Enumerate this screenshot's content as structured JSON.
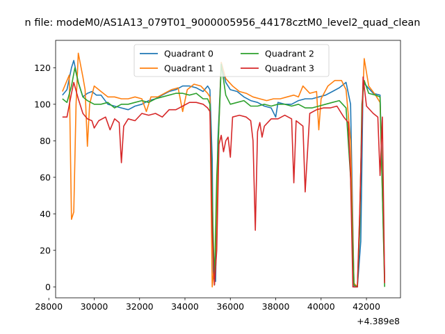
{
  "chart_data": {
    "type": "line",
    "title": "n file: modeM0/AS1A13_079T01_9000005956_44178cztM0_level2_quad_clean",
    "xlabel": "",
    "ylabel": "",
    "x_offset_label": "+4.389e8",
    "xlim": [
      28300,
      43500
    ],
    "ylim": [
      -6,
      135
    ],
    "xticks": [
      28000,
      30000,
      32000,
      34000,
      36000,
      38000,
      40000,
      42000
    ],
    "yticks": [
      0,
      20,
      40,
      60,
      80,
      100,
      120
    ],
    "legend": {
      "placement": "upper center",
      "columns": 2
    },
    "colors": {
      "Quadrant 0": "#1f77b4",
      "Quadrant 1": "#ff7f0e",
      "Quadrant 2": "#2ca02c",
      "Quadrant 3": "#d62728"
    },
    "series": [
      {
        "name": "Quadrant 0",
        "points": [
          [
            28600,
            105
          ],
          [
            28800,
            108
          ],
          [
            29000,
            120
          ],
          [
            29100,
            124
          ],
          [
            29300,
            112
          ],
          [
            29500,
            104
          ],
          [
            29700,
            106
          ],
          [
            29900,
            107
          ],
          [
            30100,
            105
          ],
          [
            30300,
            105
          ],
          [
            30600,
            100
          ],
          [
            30900,
            99
          ],
          [
            31200,
            98
          ],
          [
            31500,
            97
          ],
          [
            31800,
            99
          ],
          [
            32100,
            100
          ],
          [
            32400,
            102
          ],
          [
            32700,
            103
          ],
          [
            33000,
            105
          ],
          [
            33300,
            107
          ],
          [
            33600,
            108
          ],
          [
            33900,
            110
          ],
          [
            34200,
            110
          ],
          [
            34500,
            109
          ],
          [
            34800,
            107
          ],
          [
            35000,
            110
          ],
          [
            35100,
            108
          ],
          [
            35200,
            70
          ],
          [
            35250,
            5
          ],
          [
            35350,
            3
          ],
          [
            35450,
            80
          ],
          [
            35600,
            122
          ],
          [
            35800,
            112
          ],
          [
            36000,
            108
          ],
          [
            36300,
            107
          ],
          [
            36600,
            104
          ],
          [
            36900,
            102
          ],
          [
            37200,
            101
          ],
          [
            37500,
            99
          ],
          [
            37800,
            98
          ],
          [
            38000,
            93
          ],
          [
            38100,
            101
          ],
          [
            38400,
            100
          ],
          [
            38700,
            100
          ],
          [
            39000,
            102
          ],
          [
            39300,
            103
          ],
          [
            39600,
            103
          ],
          [
            39900,
            104
          ],
          [
            40200,
            105
          ],
          [
            40500,
            107
          ],
          [
            40800,
            109
          ],
          [
            41100,
            112
          ],
          [
            41300,
            100
          ],
          [
            41450,
            0
          ],
          [
            41600,
            0
          ],
          [
            41750,
            25
          ],
          [
            41850,
            112
          ],
          [
            42000,
            110
          ],
          [
            42300,
            106
          ],
          [
            42600,
            105
          ],
          [
            42800,
            5
          ]
        ]
      },
      {
        "name": "Quadrant 1",
        "points": [
          [
            28600,
            107
          ],
          [
            28900,
            116
          ],
          [
            29000,
            37
          ],
          [
            29100,
            41
          ],
          [
            29200,
            100
          ],
          [
            29300,
            128
          ],
          [
            29500,
            115
          ],
          [
            29600,
            108
          ],
          [
            29700,
            77
          ],
          [
            29800,
            100
          ],
          [
            30000,
            110
          ],
          [
            30300,
            107
          ],
          [
            30600,
            104
          ],
          [
            30900,
            104
          ],
          [
            31200,
            103
          ],
          [
            31500,
            103
          ],
          [
            31800,
            104
          ],
          [
            32100,
            103
          ],
          [
            32300,
            96
          ],
          [
            32500,
            104
          ],
          [
            32800,
            104
          ],
          [
            33100,
            106
          ],
          [
            33400,
            108
          ],
          [
            33700,
            109
          ],
          [
            33900,
            96
          ],
          [
            34100,
            108
          ],
          [
            34400,
            111
          ],
          [
            34700,
            110
          ],
          [
            35000,
            106
          ],
          [
            35100,
            104
          ],
          [
            35200,
            0
          ],
          [
            35350,
            20
          ],
          [
            35500,
            90
          ],
          [
            35600,
            123
          ],
          [
            35800,
            114
          ],
          [
            36100,
            110
          ],
          [
            36400,
            107
          ],
          [
            36700,
            106
          ],
          [
            37000,
            104
          ],
          [
            37300,
            103
          ],
          [
            37600,
            102
          ],
          [
            37900,
            103
          ],
          [
            38200,
            103
          ],
          [
            38500,
            104
          ],
          [
            38800,
            105
          ],
          [
            39000,
            104
          ],
          [
            39200,
            110
          ],
          [
            39500,
            106
          ],
          [
            39800,
            107
          ],
          [
            39900,
            86
          ],
          [
            40000,
            103
          ],
          [
            40300,
            110
          ],
          [
            40600,
            113
          ],
          [
            40900,
            113
          ],
          [
            41100,
            108
          ],
          [
            41300,
            80
          ],
          [
            41450,
            2
          ],
          [
            41600,
            0
          ],
          [
            41700,
            40
          ],
          [
            41800,
            90
          ],
          [
            41900,
            125
          ],
          [
            42100,
            110
          ],
          [
            42400,
            105
          ],
          [
            42600,
            101
          ],
          [
            42800,
            3
          ]
        ]
      },
      {
        "name": "Quadrant 2",
        "points": [
          [
            28600,
            103
          ],
          [
            28800,
            101
          ],
          [
            29000,
            110
          ],
          [
            29150,
            120
          ],
          [
            29300,
            112
          ],
          [
            29500,
            104
          ],
          [
            29700,
            102
          ],
          [
            30000,
            100
          ],
          [
            30300,
            100
          ],
          [
            30600,
            101
          ],
          [
            30900,
            98
          ],
          [
            31200,
            100
          ],
          [
            31500,
            100
          ],
          [
            31800,
            101
          ],
          [
            32100,
            102
          ],
          [
            32400,
            101
          ],
          [
            32700,
            103
          ],
          [
            33000,
            104
          ],
          [
            33300,
            105
          ],
          [
            33600,
            106
          ],
          [
            33900,
            106
          ],
          [
            34200,
            105
          ],
          [
            34500,
            106
          ],
          [
            34800,
            103
          ],
          [
            35000,
            103
          ],
          [
            35100,
            100
          ],
          [
            35200,
            50
          ],
          [
            35300,
            1
          ],
          [
            35400,
            60
          ],
          [
            35550,
            105
          ],
          [
            35600,
            122
          ],
          [
            35800,
            105
          ],
          [
            36000,
            100
          ],
          [
            36300,
            101
          ],
          [
            36600,
            102
          ],
          [
            36900,
            99
          ],
          [
            37200,
            99
          ],
          [
            37500,
            100
          ],
          [
            37800,
            99
          ],
          [
            38100,
            100
          ],
          [
            38400,
            100
          ],
          [
            38700,
            99
          ],
          [
            39000,
            100
          ],
          [
            39300,
            98
          ],
          [
            39600,
            98
          ],
          [
            39900,
            99
          ],
          [
            40200,
            100
          ],
          [
            40500,
            101
          ],
          [
            40800,
            102
          ],
          [
            41100,
            98
          ],
          [
            41300,
            60
          ],
          [
            41450,
            1
          ],
          [
            41600,
            0
          ],
          [
            41700,
            30
          ],
          [
            41800,
            100
          ],
          [
            41900,
            113
          ],
          [
            42100,
            106
          ],
          [
            42400,
            105
          ],
          [
            42600,
            104
          ],
          [
            42800,
            0
          ]
        ]
      },
      {
        "name": "Quadrant 3",
        "points": [
          [
            28600,
            93
          ],
          [
            28800,
            93
          ],
          [
            29000,
            106
          ],
          [
            29100,
            112
          ],
          [
            29300,
            103
          ],
          [
            29500,
            95
          ],
          [
            29700,
            92
          ],
          [
            29900,
            91
          ],
          [
            30000,
            87
          ],
          [
            30200,
            91
          ],
          [
            30500,
            93
          ],
          [
            30700,
            86
          ],
          [
            30900,
            92
          ],
          [
            31100,
            90
          ],
          [
            31200,
            68
          ],
          [
            31300,
            88
          ],
          [
            31500,
            92
          ],
          [
            31800,
            91
          ],
          [
            32100,
            95
          ],
          [
            32400,
            94
          ],
          [
            32700,
            95
          ],
          [
            33000,
            93
          ],
          [
            33300,
            97
          ],
          [
            33600,
            97
          ],
          [
            33900,
            99
          ],
          [
            34200,
            101
          ],
          [
            34500,
            101
          ],
          [
            34800,
            100
          ],
          [
            35000,
            98
          ],
          [
            35100,
            96
          ],
          [
            35200,
            30
          ],
          [
            35300,
            1
          ],
          [
            35400,
            20
          ],
          [
            35500,
            78
          ],
          [
            35600,
            83
          ],
          [
            35700,
            74
          ],
          [
            35800,
            80
          ],
          [
            35900,
            82
          ],
          [
            36000,
            71
          ],
          [
            36100,
            93
          ],
          [
            36400,
            94
          ],
          [
            36700,
            93
          ],
          [
            36900,
            91
          ],
          [
            37000,
            80
          ],
          [
            37100,
            31
          ],
          [
            37200,
            85
          ],
          [
            37300,
            90
          ],
          [
            37400,
            82
          ],
          [
            37500,
            88
          ],
          [
            37800,
            92
          ],
          [
            38100,
            92
          ],
          [
            38400,
            94
          ],
          [
            38700,
            92
          ],
          [
            38800,
            57
          ],
          [
            38900,
            91
          ],
          [
            39200,
            88
          ],
          [
            39300,
            52
          ],
          [
            39500,
            95
          ],
          [
            39800,
            97
          ],
          [
            40100,
            98
          ],
          [
            40400,
            98
          ],
          [
            40700,
            99
          ],
          [
            41000,
            93
          ],
          [
            41200,
            90
          ],
          [
            41300,
            60
          ],
          [
            41400,
            0
          ],
          [
            41600,
            0
          ],
          [
            41700,
            40
          ],
          [
            41850,
            115
          ],
          [
            42000,
            99
          ],
          [
            42300,
            95
          ],
          [
            42500,
            93
          ],
          [
            42600,
            61
          ],
          [
            42700,
            93
          ],
          [
            42800,
            2
          ]
        ]
      }
    ]
  }
}
